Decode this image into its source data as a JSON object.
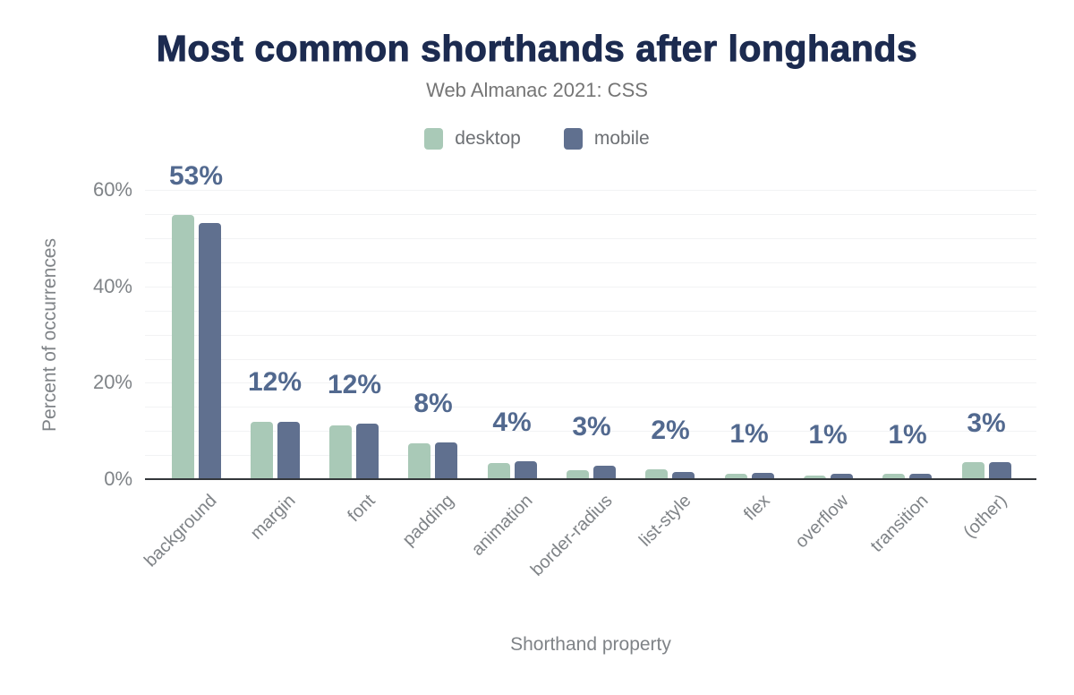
{
  "chart_data": {
    "type": "bar",
    "title": "Most common shorthands after longhands",
    "subtitle": "Web Almanac 2021: CSS",
    "xlabel": "Shorthand property",
    "ylabel": "Percent of occurrences",
    "categories": [
      "background",
      "margin",
      "font",
      "padding",
      "animation",
      "border-radius",
      "list-style",
      "flex",
      "overflow",
      "transition",
      "(other)"
    ],
    "series": [
      {
        "name": "desktop",
        "color": "#a9c9b7",
        "values": [
          54.8,
          11.9,
          11.2,
          7.5,
          3.4,
          1.8,
          2.0,
          1.2,
          0.8,
          1.2,
          3.6
        ]
      },
      {
        "name": "mobile",
        "color": "#60708f",
        "values": [
          53.2,
          12.0,
          11.6,
          7.6,
          3.7,
          2.8,
          1.5,
          1.3,
          1.2,
          1.2,
          3.5
        ]
      }
    ],
    "value_labels": [
      "53%",
      "12%",
      "12%",
      "8%",
      "4%",
      "3%",
      "2%",
      "1%",
      "1%",
      "1%",
      "3%"
    ],
    "y_ticks": [
      {
        "value": 0,
        "label": "0%"
      },
      {
        "value": 20,
        "label": "20%"
      },
      {
        "value": 40,
        "label": "40%"
      },
      {
        "value": 60,
        "label": "60%"
      }
    ],
    "ylim": [
      0,
      60
    ],
    "gridline_step": 5,
    "grid": "on",
    "legend_position": "top"
  },
  "colors": {
    "title": "#1c2b50",
    "subtitle": "#757575",
    "axis_text": "#7f8387",
    "value_label": "#52698f",
    "gridline": "#f2f3f4",
    "axis_line": "#33373b",
    "background": "#ffffff"
  }
}
